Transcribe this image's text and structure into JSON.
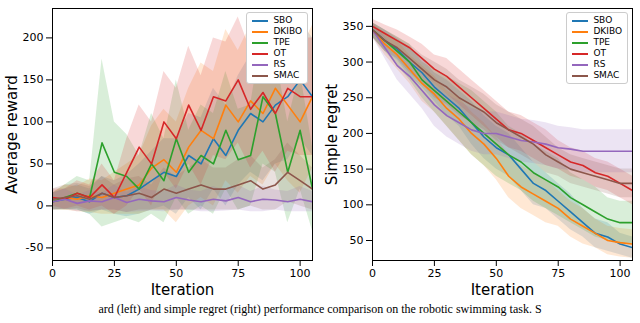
{
  "chart_data": [
    {
      "type": "line",
      "x_label": "Iteration",
      "y_label": "Average reward",
      "xlim": [
        0,
        105
      ],
      "xticks": [
        0,
        25,
        50,
        75,
        100
      ],
      "ylim": [
        -65,
        235
      ],
      "yticks": [
        -50,
        0,
        50,
        100,
        150,
        200
      ],
      "grid": false,
      "legend": "upper right",
      "x": [
        0,
        5,
        10,
        15,
        20,
        25,
        30,
        35,
        40,
        45,
        50,
        55,
        60,
        65,
        70,
        75,
        80,
        85,
        90,
        95,
        100,
        105
      ],
      "series": [
        {
          "name": "SBO",
          "color": "#1f77b4",
          "values": [
            5,
            8,
            10,
            5,
            15,
            10,
            12,
            20,
            30,
            40,
            35,
            60,
            50,
            80,
            60,
            90,
            110,
            100,
            120,
            130,
            150,
            130
          ],
          "error": [
            10,
            12,
            15,
            15,
            20,
            20,
            25,
            30,
            35,
            40,
            45,
            50,
            55,
            60,
            60,
            65,
            70,
            70,
            70,
            75,
            70,
            70
          ]
        },
        {
          "name": "DKIBO",
          "color": "#ff7f0e",
          "values": [
            5,
            10,
            8,
            12,
            10,
            15,
            20,
            25,
            45,
            55,
            40,
            70,
            90,
            80,
            120,
            100,
            125,
            110,
            140,
            120,
            100,
            130
          ],
          "error": [
            10,
            15,
            15,
            20,
            20,
            25,
            30,
            35,
            50,
            60,
            60,
            70,
            80,
            80,
            90,
            85,
            90,
            85,
            90,
            90,
            85,
            85
          ]
        },
        {
          "name": "TPE",
          "color": "#2ca02c",
          "values": [
            5,
            10,
            15,
            10,
            75,
            40,
            35,
            20,
            50,
            30,
            80,
            40,
            60,
            50,
            90,
            55,
            60,
            130,
            110,
            40,
            90,
            20
          ],
          "error": [
            10,
            15,
            20,
            20,
            100,
            60,
            50,
            40,
            60,
            50,
            70,
            50,
            60,
            60,
            70,
            60,
            60,
            80,
            70,
            60,
            70,
            50
          ]
        },
        {
          "name": "OT",
          "color": "#d62728",
          "values": [
            10,
            8,
            15,
            10,
            25,
            10,
            40,
            70,
            50,
            100,
            80,
            120,
            90,
            130,
            125,
            150,
            115,
            135,
            110,
            140,
            130,
            130
          ],
          "error": [
            10,
            12,
            15,
            15,
            25,
            20,
            40,
            50,
            50,
            60,
            60,
            70,
            65,
            70,
            70,
            75,
            70,
            70,
            70,
            75,
            70,
            70
          ]
        },
        {
          "name": "RS",
          "color": "#9467bd",
          "values": [
            5,
            8,
            3,
            6,
            5,
            10,
            4,
            8,
            6,
            5,
            10,
            7,
            5,
            8,
            6,
            10,
            5,
            8,
            7,
            5,
            8,
            5
          ],
          "error": [
            10,
            12,
            10,
            12,
            10,
            15,
            12,
            15,
            12,
            12,
            15,
            12,
            12,
            15,
            12,
            15,
            12,
            15,
            12,
            12,
            15,
            12
          ]
        },
        {
          "name": "SMAC",
          "color": "#8c564b",
          "values": [
            8,
            10,
            12,
            8,
            15,
            10,
            12,
            15,
            10,
            20,
            15,
            20,
            25,
            20,
            20,
            25,
            30,
            20,
            25,
            40,
            30,
            20
          ],
          "error": [
            12,
            15,
            15,
            15,
            20,
            15,
            20,
            20,
            15,
            25,
            20,
            25,
            30,
            25,
            25,
            30,
            30,
            25,
            30,
            35,
            30,
            25
          ]
        }
      ]
    },
    {
      "type": "line",
      "x_label": "Iteration",
      "y_label": "Simple regret",
      "xlim": [
        0,
        105
      ],
      "xticks": [
        0,
        25,
        50,
        75,
        100
      ],
      "ylim": [
        22,
        375
      ],
      "yticks": [
        50,
        100,
        150,
        200,
        250,
        300,
        350
      ],
      "grid": false,
      "legend": "upper right",
      "x": [
        0,
        5,
        10,
        15,
        20,
        25,
        30,
        35,
        40,
        45,
        50,
        55,
        60,
        65,
        70,
        75,
        80,
        85,
        90,
        95,
        100,
        105
      ],
      "series": [
        {
          "name": "SBO",
          "color": "#1f77b4",
          "values": [
            345,
            330,
            318,
            300,
            285,
            265,
            250,
            235,
            215,
            195,
            180,
            170,
            150,
            130,
            120,
            105,
            90,
            75,
            60,
            55,
            45,
            40
          ],
          "error": [
            10,
            15,
            15,
            20,
            20,
            20,
            25,
            25,
            30,
            30,
            30,
            30,
            30,
            30,
            25,
            25,
            25,
            20,
            20,
            20,
            15,
            15
          ]
        },
        {
          "name": "DKIBO",
          "color": "#ff7f0e",
          "values": [
            345,
            325,
            310,
            290,
            270,
            255,
            235,
            220,
            200,
            185,
            165,
            140,
            125,
            115,
            105,
            95,
            80,
            70,
            60,
            50,
            47,
            45
          ],
          "error": [
            10,
            15,
            20,
            20,
            25,
            25,
            25,
            30,
            30,
            30,
            30,
            30,
            30,
            30,
            30,
            25,
            25,
            25,
            20,
            20,
            20,
            20
          ]
        },
        {
          "name": "TPE",
          "color": "#2ca02c",
          "values": [
            345,
            330,
            315,
            300,
            275,
            260,
            245,
            230,
            215,
            200,
            185,
            170,
            160,
            145,
            135,
            125,
            110,
            100,
            90,
            80,
            75,
            75
          ],
          "error": [
            10,
            15,
            20,
            25,
            25,
            30,
            35,
            40,
            45,
            45,
            45,
            40,
            40,
            40,
            40,
            40,
            35,
            35,
            35,
            30,
            30,
            30
          ]
        },
        {
          "name": "OT",
          "color": "#d62728",
          "values": [
            350,
            340,
            330,
            320,
            305,
            290,
            280,
            265,
            250,
            235,
            220,
            205,
            200,
            190,
            180,
            170,
            160,
            155,
            145,
            140,
            130,
            120
          ],
          "error": [
            10,
            12,
            15,
            15,
            20,
            20,
            25,
            25,
            25,
            25,
            25,
            25,
            25,
            25,
            25,
            20,
            20,
            20,
            20,
            20,
            20,
            20
          ]
        },
        {
          "name": "RS",
          "color": "#9467bd",
          "values": [
            345,
            320,
            295,
            280,
            260,
            240,
            225,
            215,
            205,
            200,
            200,
            195,
            190,
            188,
            185,
            180,
            178,
            175,
            175,
            175,
            175,
            175
          ],
          "error": [
            10,
            15,
            20,
            25,
            25,
            30,
            30,
            30,
            30,
            30,
            30,
            30,
            30,
            30,
            30,
            30,
            30,
            30,
            30,
            30,
            30,
            30
          ]
        },
        {
          "name": "SMAC",
          "color": "#8c564b",
          "values": [
            345,
            330,
            320,
            305,
            290,
            275,
            265,
            250,
            240,
            230,
            215,
            205,
            195,
            185,
            170,
            160,
            150,
            145,
            140,
            135,
            130,
            130
          ],
          "error": [
            10,
            15,
            15,
            20,
            20,
            25,
            25,
            25,
            25,
            25,
            25,
            25,
            25,
            25,
            25,
            20,
            20,
            20,
            20,
            20,
            20,
            20
          ]
        }
      ]
    }
  ],
  "caption": "ard (left) and simple regret (right) performance comparison on the robotic swimming task. S"
}
